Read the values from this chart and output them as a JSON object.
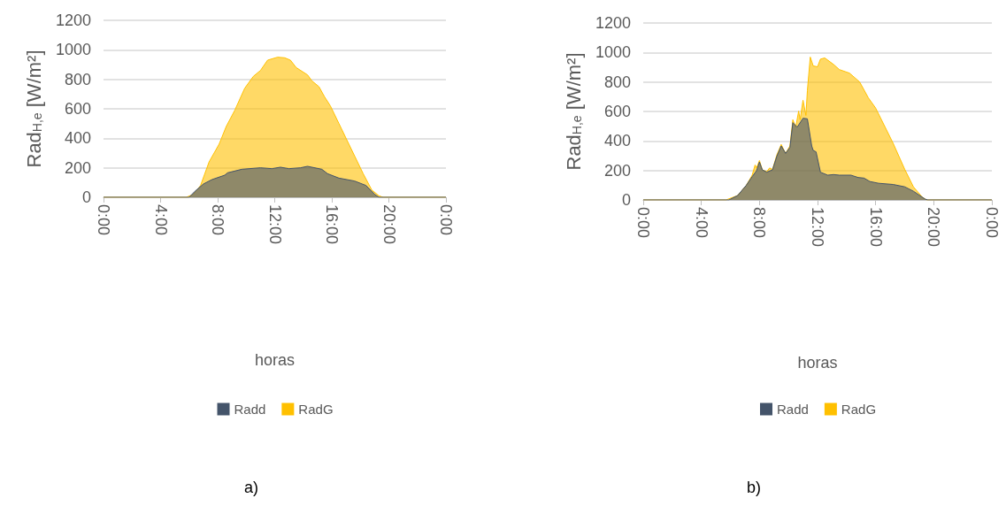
{
  "chart_data": [
    {
      "type": "area",
      "xlabel": "horas",
      "ylabel": "Rad$_{H,e}$ [W/m²]",
      "annotations": [
        "a)"
      ],
      "xlim": [
        0,
        24
      ],
      "xticks": [
        {
          "value": 0,
          "label": "0:00"
        },
        {
          "value": 4,
          "label": "4:00"
        },
        {
          "value": 8,
          "label": "8:00"
        },
        {
          "value": 12,
          "label": "12:00"
        },
        {
          "value": 16,
          "label": "16:00"
        },
        {
          "value": 20,
          "label": "20:00"
        },
        {
          "value": 24,
          "label": "0:00"
        }
      ],
      "ylim": [
        0,
        1200
      ],
      "yticks": [
        0,
        200,
        400,
        600,
        800,
        1000,
        1200
      ],
      "grid": "y",
      "legend": "bottom",
      "series": [
        {
          "name": "Radd",
          "color": "#44546a",
          "x": [
            0,
            6,
            6.4,
            7,
            7.6,
            8.5,
            8.7,
            9.7,
            11,
            11.8,
            12.4,
            13,
            13.8,
            14.3,
            15.3,
            15.7,
            16.5,
            17.6,
            18.4,
            19,
            19.3,
            24
          ],
          "values": [
            0,
            0,
            40,
            90,
            120,
            150,
            166,
            190,
            200,
            194,
            204,
            194,
            200,
            210,
            190,
            160,
            130,
            110,
            80,
            20,
            0,
            0
          ]
        },
        {
          "name": "RadG",
          "color": "#ffc000",
          "x": [
            0,
            5.8,
            6.3,
            6.8,
            7.4,
            8.1,
            8.6,
            9.2,
            9.9,
            10.5,
            11,
            11.5,
            12.2,
            12.7,
            13.1,
            13.5,
            14.3,
            14.6,
            15.1,
            15.5,
            15.9,
            16.5,
            16.9,
            17.6,
            18.2,
            18.8,
            19.3,
            19.6,
            24
          ],
          "values": [
            0,
            0,
            20,
            80,
            240,
            360,
            480,
            590,
            740,
            820,
            860,
            930,
            950,
            946,
            930,
            880,
            830,
            790,
            750,
            680,
            620,
            500,
            420,
            280,
            160,
            50,
            10,
            0,
            0
          ]
        }
      ]
    },
    {
      "type": "area",
      "xlabel": "horas",
      "ylabel": "Rad$_{H,e}$ [W/m²]",
      "annotations": [
        "b)"
      ],
      "xlim": [
        0,
        24
      ],
      "xticks": [
        {
          "value": 0,
          "label": "0:00"
        },
        {
          "value": 4,
          "label": "4:00"
        },
        {
          "value": 8,
          "label": "8:00"
        },
        {
          "value": 12,
          "label": "12:00"
        },
        {
          "value": 16,
          "label": "16:00"
        },
        {
          "value": 20,
          "label": "20:00"
        },
        {
          "value": 24,
          "label": "0:00"
        }
      ],
      "ylim": [
        0,
        1200
      ],
      "yticks": [
        0,
        200,
        400,
        600,
        800,
        1000,
        1200
      ],
      "grid": "y",
      "legend": "bottom",
      "series": [
        {
          "name": "Radd",
          "color": "#44546a",
          "x": [
            0,
            5.9,
            6.5,
            7.1,
            7.5,
            7.8,
            8,
            8.2,
            8.5,
            8.9,
            9.2,
            9.5,
            9.8,
            10.1,
            10.3,
            10.6,
            11,
            11.3,
            11.6,
            11.7,
            11.9,
            12.2,
            12.7,
            13.1,
            13.5,
            14.3,
            14.8,
            15.2,
            15.6,
            16.2,
            17.2,
            18,
            18.6,
            19.4,
            19.6,
            24
          ],
          "values": [
            0,
            0,
            30,
            100,
            158,
            198,
            257,
            204,
            188,
            204,
            297,
            366,
            316,
            356,
            524,
            494,
            554,
            550,
            366,
            336,
            326,
            188,
            168,
            172,
            168,
            168,
            152,
            148,
            125,
            113,
            105,
            89,
            59,
            6,
            0,
            0
          ]
        },
        {
          "name": "RadG",
          "color": "#ffc000",
          "x": [
            0,
            5.7,
            6.5,
            7.1,
            7.5,
            7.7,
            7.8,
            8,
            8.2,
            8.5,
            8.7,
            8.9,
            9.2,
            9.5,
            9.8,
            10.1,
            10.3,
            10.5,
            10.7,
            10.8,
            11,
            11.2,
            11.3,
            11.5,
            11.7,
            12,
            12.2,
            12.5,
            13.1,
            13.5,
            14.2,
            14.9,
            15.5,
            16,
            16.6,
            17.2,
            18,
            18.6,
            19.2,
            19.5,
            24
          ],
          "values": [
            0,
            0,
            30,
            100,
            168,
            237,
            217,
            267,
            204,
            192,
            217,
            207,
            306,
            376,
            316,
            366,
            544,
            494,
            603,
            544,
            676,
            573,
            741,
            969,
            909,
            903,
            955,
            963,
            919,
            884,
            860,
            800,
            692,
            623,
            504,
            385,
            208,
            89,
            20,
            0,
            0
          ]
        }
      ]
    }
  ]
}
